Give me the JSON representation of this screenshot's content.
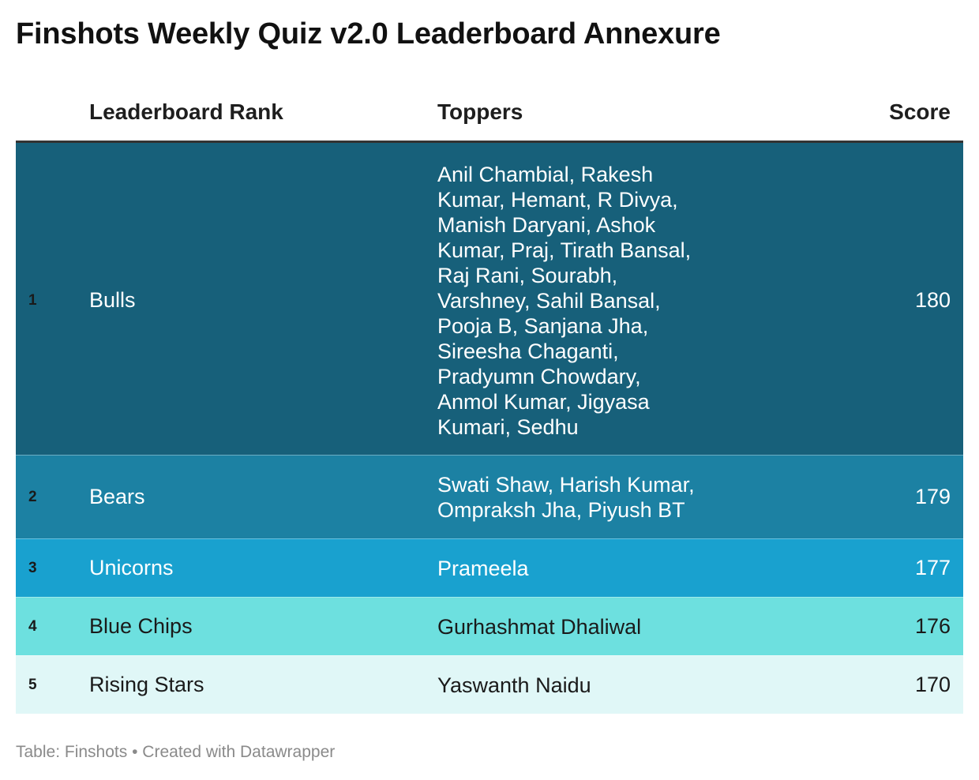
{
  "title": "Finshots Weekly Quiz v2.0 Leaderboard Annexure",
  "footer": {
    "source": "Table: Finshots",
    "separator": "•",
    "credit": "Created with Datawrapper"
  },
  "colors": {
    "row_1": "#17607a",
    "row_2": "#1c81a3",
    "row_3": "#19a1cf",
    "row_4": "#6de0df",
    "row_5": "#e0f7f7",
    "header_rule": "#333333",
    "footer_text": "#8a8a8a"
  },
  "chart_data": {
    "type": "table",
    "title": "Finshots Weekly Quiz v2.0 Leaderboard Annexure",
    "columns": [
      "",
      "Leaderboard Rank",
      "Toppers",
      "Score"
    ],
    "rows": [
      {
        "num": "1",
        "rank": "Bulls",
        "toppers": "Anil Chambial, Rakesh Kumar, Hemant, R Divya, Manish Daryani, Ashok Kumar, Praj, Tirath Bansal, Raj Rani, Sourabh, Varshney, Sahil Bansal, Pooja B, Sanjana Jha, Sireesha Chaganti, Pradyumn Chowdary, Anmol Kumar, Jigyasa Kumari, Sedhu",
        "score": 180
      },
      {
        "num": "2",
        "rank": "Bears",
        "toppers": "Swati Shaw, Harish Kumar, Ompraksh Jha, Piyush BT",
        "score": 179
      },
      {
        "num": "3",
        "rank": "Unicorns",
        "toppers": "Prameela",
        "score": 177
      },
      {
        "num": "4",
        "rank": "Blue Chips",
        "toppers": "Gurhashmat Dhaliwal",
        "score": 176
      },
      {
        "num": "5",
        "rank": "Rising Stars",
        "toppers": "Yaswanth Naidu",
        "score": 170
      }
    ]
  }
}
